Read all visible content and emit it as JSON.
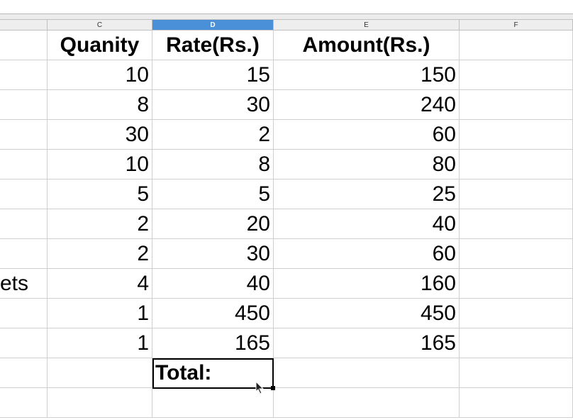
{
  "columns": [
    {
      "id": "B",
      "label": ""
    },
    {
      "id": "C",
      "label": "C"
    },
    {
      "id": "D",
      "label": "D",
      "selected": true
    },
    {
      "id": "E",
      "label": "E"
    },
    {
      "id": "F",
      "label": "F"
    }
  ],
  "headers": {
    "quantity": "Quanity",
    "rate": "Rate(Rs.)",
    "amount": "Amount(Rs.)"
  },
  "rows": [
    {
      "b": "",
      "c": "10",
      "d": "15",
      "e": "150"
    },
    {
      "b": "",
      "c": "8",
      "d": "30",
      "e": "240"
    },
    {
      "b": "",
      "c": "30",
      "d": "2",
      "e": "60"
    },
    {
      "b": "",
      "c": "10",
      "d": "8",
      "e": "80"
    },
    {
      "b": "",
      "c": "5",
      "d": "5",
      "e": "25"
    },
    {
      "b": "",
      "c": "2",
      "d": "20",
      "e": "40"
    },
    {
      "b": "",
      "c": "2",
      "d": "30",
      "e": "60"
    },
    {
      "b": "ets",
      "c": "4",
      "d": "40",
      "e": "160"
    },
    {
      "b": "",
      "c": "1",
      "d": "450",
      "e": "450"
    },
    {
      "b": "",
      "c": "1",
      "d": "165",
      "e": "165"
    }
  ],
  "total_label": "Total:",
  "colors": {
    "selected_header": "#4a90d9",
    "grid": "#cfcfcf"
  }
}
